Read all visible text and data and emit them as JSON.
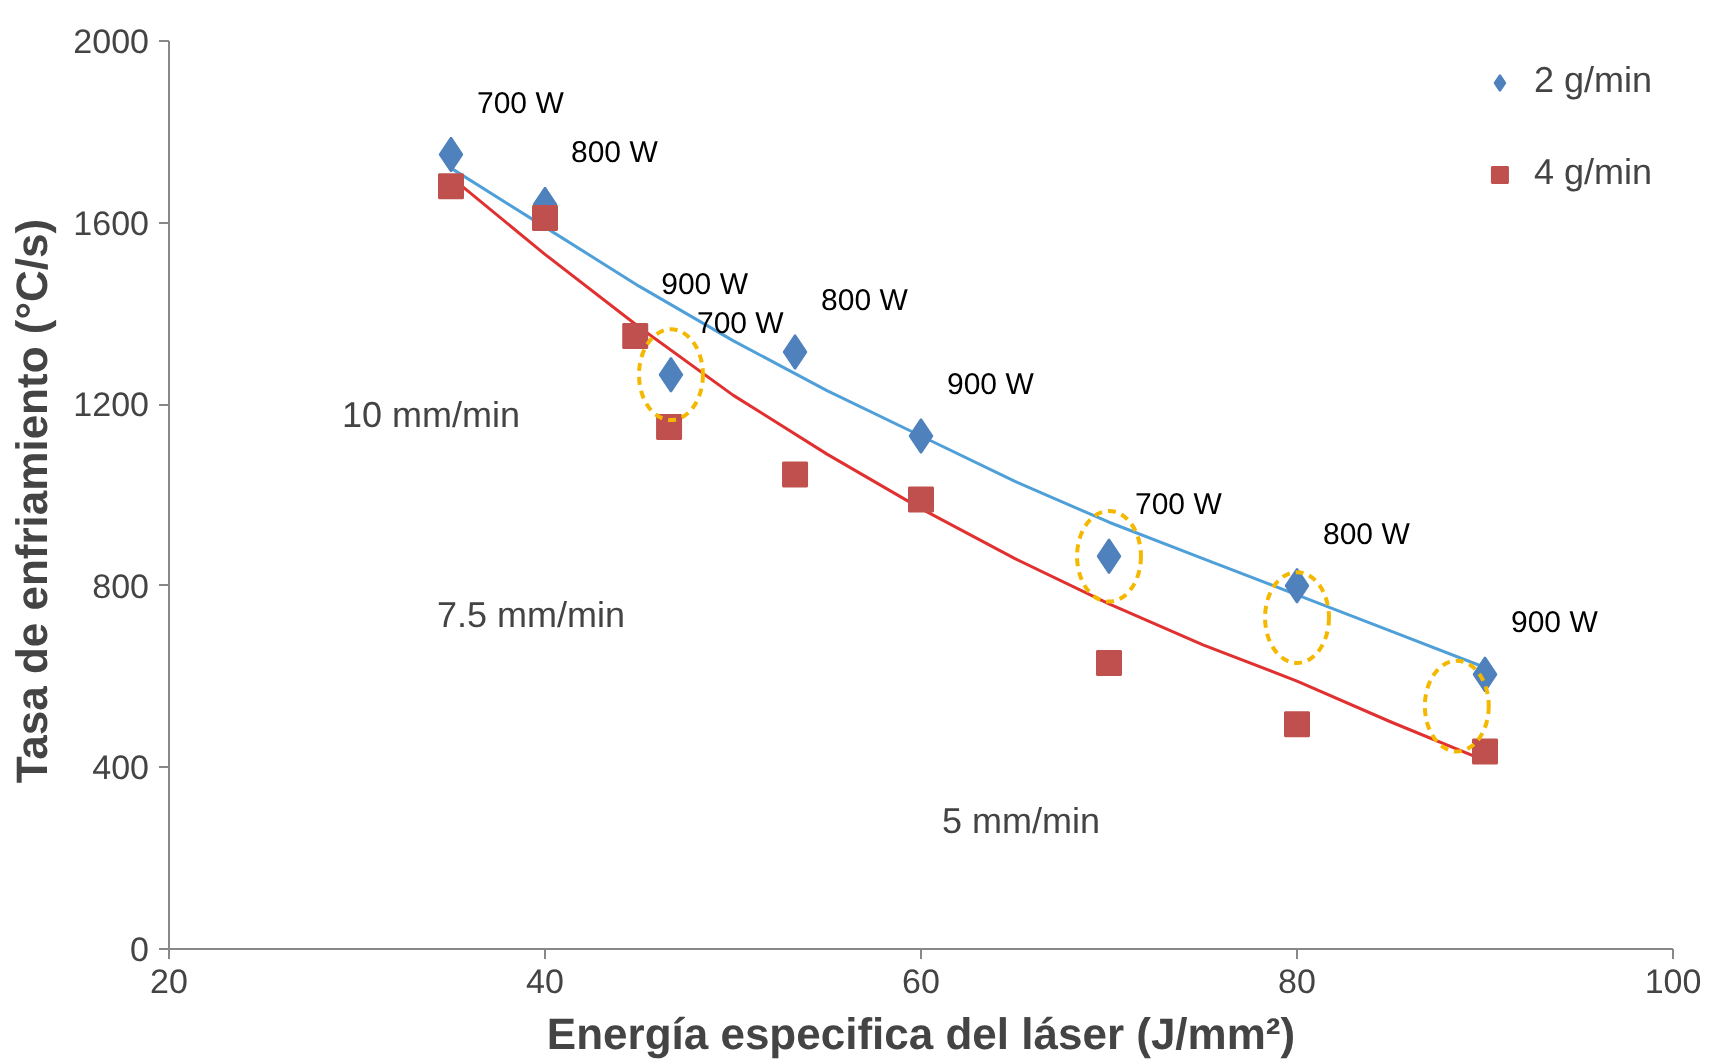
{
  "chart_data": {
    "type": "scatter",
    "xlabel": "Energía especifica del láser (J/mm²)",
    "ylabel": "Tasa de enfriamiento  (°C/s)",
    "xlim": [
      20,
      100
    ],
    "xticks": [
      20,
      40,
      60,
      80,
      100
    ],
    "ylim": [
      0,
      2000
    ],
    "yticks": [
      0,
      400,
      800,
      1200,
      1600,
      2000
    ],
    "grid": false,
    "legend": "top right",
    "series": [
      {
        "name": "2 g/min",
        "color": "#4f81bd",
        "marker": "diamond",
        "x": [
          35,
          40,
          46.7,
          53.3,
          60,
          70,
          80,
          90
        ],
        "values": [
          1750,
          1640,
          1265,
          1315,
          1130,
          865,
          800,
          605
        ]
      },
      {
        "name": "4 g/min",
        "color": "#c0504d",
        "marker": "square",
        "x": [
          35,
          40,
          44.8,
          46.6,
          53.3,
          60,
          70,
          80,
          90
        ],
        "values": [
          1680,
          1610,
          1350,
          1150,
          1045,
          990,
          630,
          495,
          435
        ]
      },
      {
        "type": "line",
        "color": "#4f9fd8",
        "x": [
          35,
          40,
          45,
          50,
          55,
          60,
          65,
          70,
          75,
          80,
          85,
          90
        ],
        "values": [
          1720,
          1590,
          1460,
          1340,
          1230,
          1130,
          1030,
          940,
          860,
          780,
          700,
          620
        ]
      },
      {
        "type": "line",
        "color": "#e03030",
        "x": [
          35,
          40,
          45,
          50,
          55,
          60,
          65,
          70,
          75,
          80,
          85,
          90
        ],
        "values": [
          1700,
          1530,
          1370,
          1220,
          1090,
          970,
          860,
          760,
          670,
          590,
          500,
          415
        ]
      }
    ],
    "annotations": [
      {
        "text": "700 W",
        "x": 35,
        "y": 1750
      },
      {
        "text": "800 W",
        "x": 40,
        "y": 1640
      },
      {
        "text": "900 W",
        "x": 44.8,
        "y": 1350
      },
      {
        "text": "700 W",
        "x": 46.7,
        "y": 1265
      },
      {
        "text": "800 W",
        "x": 53.3,
        "y": 1315
      },
      {
        "text": "900 W",
        "x": 60,
        "y": 1130
      },
      {
        "text": "700 W",
        "x": 70,
        "y": 865
      },
      {
        "text": "800 W",
        "x": 80,
        "y": 800
      },
      {
        "text": "900 W",
        "x": 90,
        "y": 605
      },
      "10 mm/min",
      "7.5 mm/min",
      "5 mm/min"
    ]
  }
}
